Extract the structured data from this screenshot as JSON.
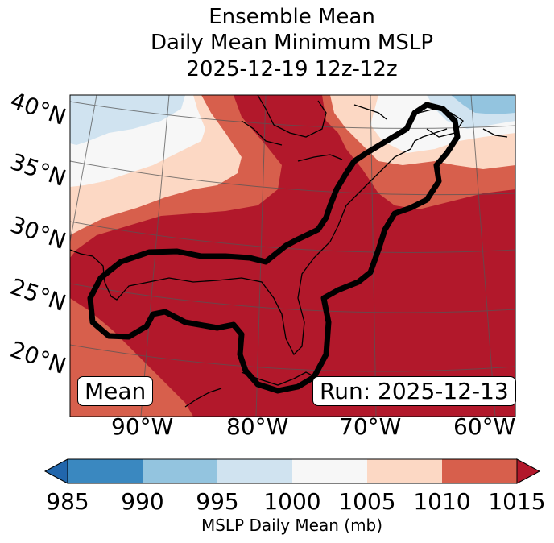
{
  "title": {
    "line1": "Ensemble Mean",
    "line2": "Daily Mean Minimum MSLP",
    "line3": "2025-12-19 12z-12z"
  },
  "map": {
    "lat_labels": [
      "40°N",
      "35°N",
      "30°N",
      "25°N",
      "20°N"
    ],
    "lon_labels": [
      "90°W",
      "80°W",
      "70°W",
      "60°W"
    ],
    "box_left": "Mean",
    "box_right": "Run: 2025-12-13",
    "colors": {
      "bin_985_990": "#3a88c0",
      "bin_990_995": "#93c4df",
      "bin_995_1000": "#d0e3f0",
      "bin_1000_1005": "#f7f7f7",
      "bin_1005_1010": "#fcd8c4",
      "bin_1010_1015": "#d75f4c",
      "over_1015": "#b2182b",
      "under_985": "#2166ac"
    }
  },
  "colorbar": {
    "ticks": [
      "985",
      "990",
      "995",
      "1000",
      "1005",
      "1010",
      "1015"
    ],
    "label": "MSLP Daily Mean (mb)",
    "min": 985,
    "max": 1015,
    "step": 5
  }
}
